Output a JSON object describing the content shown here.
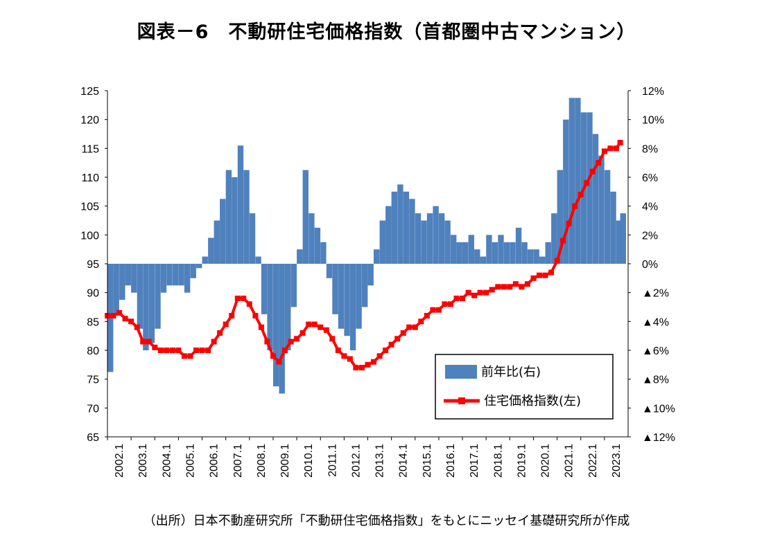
{
  "title": "図表－6　不動研住宅価格指数（首都圏中古マンション）",
  "source": "（出所）日本不動産研究所「不動研住宅価格指数」をもとにニッセイ基礎研究所が作成",
  "colors": {
    "bar": "#4F81BD",
    "line": "#FF0000",
    "axis": "#000000"
  },
  "chart_data": {
    "type": "bar+line",
    "title": "図表－6　不動研住宅価格指数（首都圏中古マンション）",
    "left_axis": {
      "ylim": [
        65,
        125
      ],
      "ticks": [
        "125",
        "120",
        "115",
        "110",
        "105",
        "100",
        "95",
        "90",
        "85",
        "80",
        "75",
        "70",
        "65"
      ]
    },
    "right_axis": {
      "ylim": [
        -12,
        12
      ],
      "unit": "%",
      "ticks": [
        "12%",
        "10%",
        "8%",
        "6%",
        "4%",
        "2%",
        "0%",
        "▲2%",
        "▲4%",
        "▲6%",
        "▲8%",
        "▲10%",
        "▲12%"
      ]
    },
    "x_ticks": [
      "2002.1",
      "2003.1",
      "2004.1",
      "2005.1",
      "2006.1",
      "2007.1",
      "2008.1",
      "2009.1",
      "2010.1",
      "2011.1",
      "2012.1",
      "2013.1",
      "2014.1",
      "2015.1",
      "2016.1",
      "2017.1",
      "2018.1",
      "2019.1",
      "2020.1",
      "2021.1",
      "2022.1",
      "2023.1"
    ],
    "grid": false,
    "legend_position": "bottom-right",
    "series": [
      {
        "name": "前年比(右)",
        "type": "bar",
        "axis": "right",
        "unit": "%",
        "points": [
          [
            "2002.1",
            -7.5
          ],
          [
            "2002.4",
            -3.5
          ],
          [
            "2002.7",
            -2.5
          ],
          [
            "2002.10",
            -1.5
          ],
          [
            "2003.1",
            -2.0
          ],
          [
            "2003.4",
            -4.5
          ],
          [
            "2003.7",
            -6.0
          ],
          [
            "2003.10",
            -5.5
          ],
          [
            "2004.1",
            -4.5
          ],
          [
            "2004.4",
            -2.0
          ],
          [
            "2004.7",
            -1.5
          ],
          [
            "2004.10",
            -1.5
          ],
          [
            "2005.1",
            -1.5
          ],
          [
            "2005.4",
            -2.0
          ],
          [
            "2005.7",
            -1.0
          ],
          [
            "2005.10",
            -0.3
          ],
          [
            "2006.1",
            0.5
          ],
          [
            "2006.4",
            1.8
          ],
          [
            "2006.7",
            3.0
          ],
          [
            "2006.10",
            4.5
          ],
          [
            "2007.1",
            6.5
          ],
          [
            "2007.4",
            6.0
          ],
          [
            "2007.7",
            8.2
          ],
          [
            "2007.10",
            6.5
          ],
          [
            "2008.1",
            3.5
          ],
          [
            "2008.4",
            0.5
          ],
          [
            "2008.7",
            -3.5
          ],
          [
            "2008.10",
            -6.0
          ],
          [
            "2009.1",
            -8.5
          ],
          [
            "2009.4",
            -9.0
          ],
          [
            "2009.7",
            -6.0
          ],
          [
            "2009.10",
            -3.0
          ],
          [
            "2010.1",
            1.0
          ],
          [
            "2010.4",
            6.5
          ],
          [
            "2010.7",
            3.5
          ],
          [
            "2010.10",
            2.5
          ],
          [
            "2011.1",
            1.5
          ],
          [
            "2011.4",
            -1.0
          ],
          [
            "2011.7",
            -3.5
          ],
          [
            "2011.10",
            -4.5
          ],
          [
            "2012.1",
            -5.0
          ],
          [
            "2012.4",
            -6.0
          ],
          [
            "2012.7",
            -4.5
          ],
          [
            "2012.10",
            -3.0
          ],
          [
            "2013.1",
            -1.5
          ],
          [
            "2013.4",
            1.0
          ],
          [
            "2013.7",
            3.0
          ],
          [
            "2013.10",
            4.0
          ],
          [
            "2014.1",
            5.0
          ],
          [
            "2014.4",
            5.5
          ],
          [
            "2014.7",
            5.0
          ],
          [
            "2014.10",
            4.5
          ],
          [
            "2015.1",
            3.5
          ],
          [
            "2015.4",
            3.0
          ],
          [
            "2015.7",
            3.5
          ],
          [
            "2015.10",
            4.0
          ],
          [
            "2016.1",
            3.5
          ],
          [
            "2016.4",
            3.0
          ],
          [
            "2016.7",
            2.0
          ],
          [
            "2016.10",
            1.5
          ],
          [
            "2017.1",
            1.5
          ],
          [
            "2017.4",
            2.0
          ],
          [
            "2017.7",
            1.0
          ],
          [
            "2017.10",
            0.5
          ],
          [
            "2018.1",
            2.0
          ],
          [
            "2018.4",
            1.5
          ],
          [
            "2018.7",
            2.0
          ],
          [
            "2018.10",
            1.5
          ],
          [
            "2019.1",
            1.5
          ],
          [
            "2019.4",
            2.5
          ],
          [
            "2019.7",
            1.5
          ],
          [
            "2019.10",
            1.0
          ],
          [
            "2020.1",
            1.0
          ],
          [
            "2020.4",
            0.5
          ],
          [
            "2020.7",
            1.5
          ],
          [
            "2020.10",
            3.5
          ],
          [
            "2021.1",
            6.5
          ],
          [
            "2021.4",
            10.0
          ],
          [
            "2021.7",
            11.5
          ],
          [
            "2021.10",
            11.5
          ],
          [
            "2022.1",
            10.5
          ],
          [
            "2022.4",
            10.5
          ],
          [
            "2022.7",
            9.0
          ],
          [
            "2022.10",
            7.5
          ],
          [
            "2023.1",
            6.5
          ],
          [
            "2023.4",
            5.0
          ],
          [
            "2023.7",
            3.0
          ],
          [
            "2023.9",
            3.5
          ]
        ]
      },
      {
        "name": "住宅価格指数(左)",
        "type": "line",
        "axis": "left",
        "points": [
          [
            "2002.1",
            86
          ],
          [
            "2002.4",
            86
          ],
          [
            "2002.7",
            86.5
          ],
          [
            "2002.10",
            85.5
          ],
          [
            "2003.1",
            85
          ],
          [
            "2003.4",
            84
          ],
          [
            "2003.7",
            81.5
          ],
          [
            "2003.10",
            81.5
          ],
          [
            "2004.1",
            80.5
          ],
          [
            "2004.4",
            80
          ],
          [
            "2004.7",
            80
          ],
          [
            "2004.10",
            80
          ],
          [
            "2005.1",
            80
          ],
          [
            "2005.4",
            79
          ],
          [
            "2005.7",
            79
          ],
          [
            "2005.10",
            80
          ],
          [
            "2006.1",
            80
          ],
          [
            "2006.4",
            80
          ],
          [
            "2006.7",
            81.5
          ],
          [
            "2006.10",
            83
          ],
          [
            "2007.1",
            84.5
          ],
          [
            "2007.4",
            86
          ],
          [
            "2007.7",
            89
          ],
          [
            "2007.10",
            89
          ],
          [
            "2008.1",
            88
          ],
          [
            "2008.4",
            86
          ],
          [
            "2008.7",
            84
          ],
          [
            "2008.10",
            81.5
          ],
          [
            "2009.1",
            79
          ],
          [
            "2009.4",
            78
          ],
          [
            "2009.7",
            80
          ],
          [
            "2009.10",
            81.5
          ],
          [
            "2010.1",
            82
          ],
          [
            "2010.4",
            83
          ],
          [
            "2010.7",
            84.5
          ],
          [
            "2010.10",
            84.5
          ],
          [
            "2011.1",
            84
          ],
          [
            "2011.4",
            83.5
          ],
          [
            "2011.7",
            82
          ],
          [
            "2011.10",
            80
          ],
          [
            "2012.1",
            79
          ],
          [
            "2012.4",
            78.5
          ],
          [
            "2012.7",
            77
          ],
          [
            "2012.10",
            77
          ],
          [
            "2013.1",
            77.5
          ],
          [
            "2013.4",
            78
          ],
          [
            "2013.7",
            79
          ],
          [
            "2013.10",
            80
          ],
          [
            "2014.1",
            81
          ],
          [
            "2014.4",
            82
          ],
          [
            "2014.7",
            83
          ],
          [
            "2014.10",
            84
          ],
          [
            "2015.1",
            84
          ],
          [
            "2015.4",
            85
          ],
          [
            "2015.7",
            86
          ],
          [
            "2015.10",
            87
          ],
          [
            "2016.1",
            87
          ],
          [
            "2016.4",
            88
          ],
          [
            "2016.7",
            88
          ],
          [
            "2016.10",
            89
          ],
          [
            "2017.1",
            89
          ],
          [
            "2017.4",
            90
          ],
          [
            "2017.7",
            89.5
          ],
          [
            "2017.10",
            90
          ],
          [
            "2018.1",
            90
          ],
          [
            "2018.4",
            90.5
          ],
          [
            "2018.7",
            91
          ],
          [
            "2018.10",
            91
          ],
          [
            "2019.1",
            91
          ],
          [
            "2019.4",
            91.5
          ],
          [
            "2019.7",
            91
          ],
          [
            "2019.10",
            91.5
          ],
          [
            "2020.1",
            92.5
          ],
          [
            "2020.4",
            93
          ],
          [
            "2020.7",
            93
          ],
          [
            "2020.10",
            93.5
          ],
          [
            "2021.1",
            95.5
          ],
          [
            "2021.4",
            99
          ],
          [
            "2021.7",
            102
          ],
          [
            "2021.10",
            105
          ],
          [
            "2022.1",
            107
          ],
          [
            "2022.4",
            109
          ],
          [
            "2022.7",
            111
          ],
          [
            "2022.10",
            112.5
          ],
          [
            "2023.1",
            114.5
          ],
          [
            "2023.4",
            115
          ],
          [
            "2023.7",
            115
          ],
          [
            "2023.9",
            116
          ]
        ]
      }
    ]
  }
}
